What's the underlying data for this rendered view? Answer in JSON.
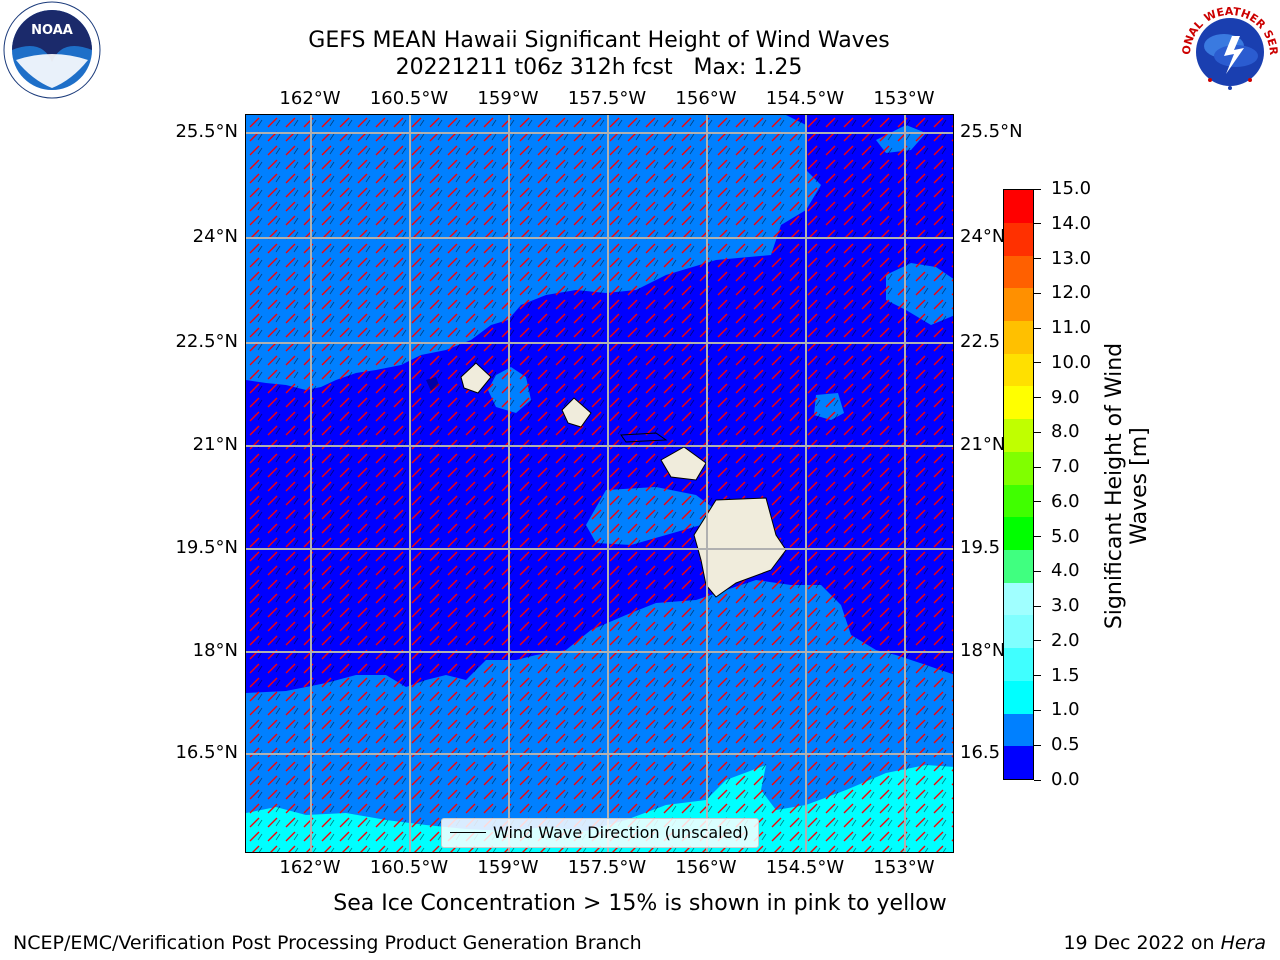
{
  "title": {
    "line1": "GEFS MEAN Hawaii Significant Height of Wind Waves",
    "line2": "20221211 t06z 312h fcst   Max: 1.25"
  },
  "axes": {
    "lon_ticks": [
      "162°W",
      "160.5°W",
      "159°W",
      "157.5°W",
      "156°W",
      "154.5°W",
      "153°W"
    ],
    "lat_ticks_left": [
      "25.5°N",
      "24°N",
      "22.5°N",
      "21°N",
      "19.5°N",
      "18°N",
      "16.5°N"
    ],
    "lat_ticks_right": [
      "25.5°N",
      "24°N",
      "22.5",
      "21°N",
      "19.5",
      "18°N",
      "16.5"
    ]
  },
  "legend": {
    "label": "Wind Wave Direction (unscaled)"
  },
  "colorbar": {
    "label_line1": "Significant Height of Wind",
    "label_line2": "Waves [m]",
    "ticks": [
      "15.0",
      "14.0",
      "13.0",
      "12.0",
      "11.0",
      "10.0",
      "9.0",
      "8.0",
      "7.0",
      "6.0",
      "5.0",
      "4.0",
      "3.0",
      "2.0",
      "1.5",
      "1.0",
      "0.5",
      "0.0"
    ],
    "colors": [
      "#0000ff",
      "#0080ff",
      "#00ffff",
      "#40ffff",
      "#80ffff",
      "#a0ffff",
      "#40ff80",
      "#00ff00",
      "#40ff00",
      "#80ff00",
      "#c0ff00",
      "#ffff00",
      "#ffe000",
      "#ffc000",
      "#ff9000",
      "#ff6000",
      "#ff3000",
      "#ff0000"
    ]
  },
  "map_colors": {
    "level_0_0_5": "#0000ff",
    "level_0_5_1": "#0080ff",
    "level_1_1_5": "#00ffff",
    "land": "#f0ecdc",
    "arrow": "#ff0000",
    "grid": "#b0b0b0"
  },
  "note": "Sea Ice Concentration > 15% is shown in pink to yellow",
  "footer": {
    "left": "NCEP/EMC/Verification Post Processing Product Generation Branch",
    "right_prefix": "19 Dec 2022 on ",
    "right_host": "Hera"
  },
  "logos": {
    "left": "NOAA",
    "right": "NATIONAL WEATHER SERVICE"
  }
}
